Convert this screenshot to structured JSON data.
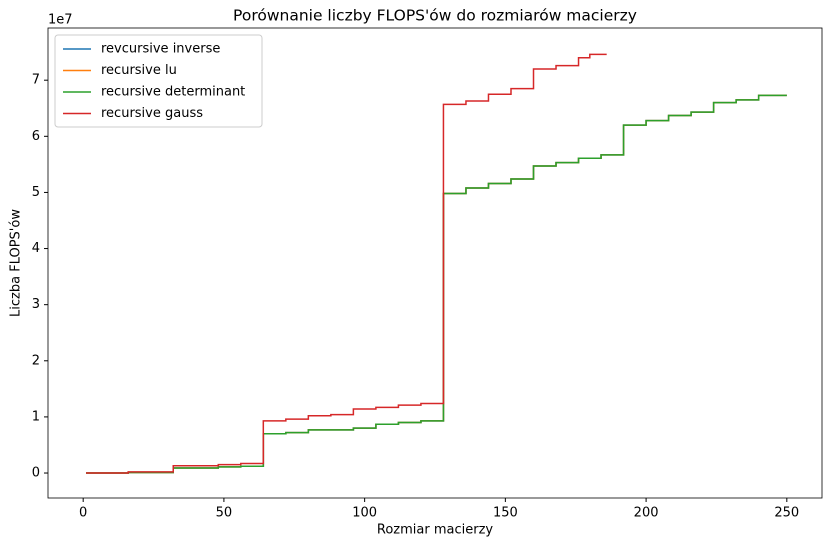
{
  "chart_data": {
    "type": "line",
    "title": "Porównanie liczby FLOPS'ów do rozmiarów macierzy",
    "xlabel": "Rozmiar macierzy",
    "ylabel": "Liczba FLOPS'ów",
    "y_offset_text": "1e7",
    "xlim": [
      -12.5,
      262.5
    ],
    "ylim": [
      -0.445,
      7.93
    ],
    "xticks": [
      0,
      50,
      100,
      150,
      200,
      250
    ],
    "yticks": [
      0,
      1,
      2,
      3,
      4,
      5,
      6,
      7
    ],
    "legend": "upper left",
    "series": [
      {
        "name": "revcursive inverse",
        "color": "#1f77b4",
        "x": [
          1,
          16,
          16,
          32,
          32,
          48,
          48,
          56,
          56,
          64,
          64,
          72,
          72,
          80,
          80,
          96,
          96,
          104,
          104,
          112,
          112,
          120,
          120,
          128,
          128,
          136,
          136,
          144,
          144,
          152,
          152,
          160,
          160,
          168,
          168,
          176,
          176,
          184,
          184,
          192,
          192,
          200,
          200,
          208,
          208,
          216,
          216,
          224,
          224,
          232,
          232,
          240,
          240,
          250
        ],
        "values": [
          0,
          0,
          0.01,
          0.01,
          0.09,
          0.09,
          0.11,
          0.11,
          0.12,
          0.12,
          0.7,
          0.7,
          0.72,
          0.72,
          0.77,
          0.77,
          0.8,
          0.8,
          0.87,
          0.87,
          0.9,
          0.9,
          0.93,
          0.93,
          4.98,
          4.98,
          5.08,
          5.08,
          5.16,
          5.16,
          5.24,
          5.24,
          5.47,
          5.47,
          5.53,
          5.53,
          5.61,
          5.61,
          5.67,
          5.67,
          6.2,
          6.2,
          6.28,
          6.28,
          6.37,
          6.37,
          6.43,
          6.43,
          6.6,
          6.6,
          6.65,
          6.65,
          6.73,
          6.73
        ]
      },
      {
        "name": "recursive lu",
        "color": "#ff7f0e",
        "x": [
          1,
          16,
          16,
          32,
          32,
          48,
          48,
          56,
          56,
          64,
          64,
          72,
          72,
          80,
          80,
          96,
          96,
          104,
          104,
          112,
          112,
          120,
          120,
          128,
          128,
          136,
          136,
          144,
          144,
          152,
          152,
          160,
          160,
          168,
          168,
          176,
          176,
          184,
          184,
          192,
          192,
          200,
          200,
          208,
          208,
          216,
          216,
          224,
          224,
          232,
          232,
          240,
          240,
          250
        ],
        "values": [
          0,
          0,
          0.01,
          0.01,
          0.09,
          0.09,
          0.11,
          0.11,
          0.12,
          0.12,
          0.7,
          0.7,
          0.72,
          0.72,
          0.77,
          0.77,
          0.8,
          0.8,
          0.87,
          0.87,
          0.9,
          0.9,
          0.93,
          0.93,
          4.98,
          4.98,
          5.08,
          5.08,
          5.16,
          5.16,
          5.24,
          5.24,
          5.47,
          5.47,
          5.53,
          5.53,
          5.61,
          5.61,
          5.67,
          5.67,
          6.2,
          6.2,
          6.28,
          6.28,
          6.37,
          6.37,
          6.43,
          6.43,
          6.6,
          6.6,
          6.65,
          6.65,
          6.73,
          6.73
        ]
      },
      {
        "name": "recursive determinant",
        "color": "#2ca02c",
        "x": [
          1,
          16,
          16,
          32,
          32,
          48,
          48,
          56,
          56,
          64,
          64,
          72,
          72,
          80,
          80,
          96,
          96,
          104,
          104,
          112,
          112,
          120,
          120,
          128,
          128,
          136,
          136,
          144,
          144,
          152,
          152,
          160,
          160,
          168,
          168,
          176,
          176,
          184,
          184,
          192,
          192,
          200,
          200,
          208,
          208,
          216,
          216,
          224,
          224,
          232,
          232,
          240,
          240,
          250
        ],
        "values": [
          0,
          0,
          0.01,
          0.01,
          0.09,
          0.09,
          0.11,
          0.11,
          0.12,
          0.12,
          0.7,
          0.7,
          0.72,
          0.72,
          0.77,
          0.77,
          0.8,
          0.8,
          0.87,
          0.87,
          0.9,
          0.9,
          0.93,
          0.93,
          4.98,
          4.98,
          5.08,
          5.08,
          5.16,
          5.16,
          5.24,
          5.24,
          5.47,
          5.47,
          5.53,
          5.53,
          5.61,
          5.61,
          5.67,
          5.67,
          6.2,
          6.2,
          6.28,
          6.28,
          6.37,
          6.37,
          6.43,
          6.43,
          6.6,
          6.6,
          6.65,
          6.65,
          6.73,
          6.73
        ]
      },
      {
        "name": "recursive gauss",
        "color": "#d62728",
        "x": [
          1,
          16,
          16,
          32,
          32,
          48,
          48,
          56,
          56,
          64,
          64,
          72,
          72,
          80,
          80,
          88,
          88,
          96,
          96,
          104,
          104,
          112,
          112,
          120,
          120,
          128,
          128,
          136,
          136,
          144,
          144,
          152,
          152,
          160,
          160,
          168,
          168,
          176,
          176,
          180,
          180,
          186
        ],
        "values": [
          0,
          0,
          0.02,
          0.02,
          0.13,
          0.13,
          0.15,
          0.15,
          0.17,
          0.17,
          0.93,
          0.93,
          0.96,
          0.96,
          1.02,
          1.02,
          1.04,
          1.04,
          1.14,
          1.14,
          1.17,
          1.17,
          1.21,
          1.21,
          1.24,
          1.24,
          6.57,
          6.57,
          6.63,
          6.63,
          6.75,
          6.75,
          6.85,
          6.85,
          7.2,
          7.2,
          7.26,
          7.26,
          7.4,
          7.4,
          7.46,
          7.46
        ]
      }
    ]
  }
}
